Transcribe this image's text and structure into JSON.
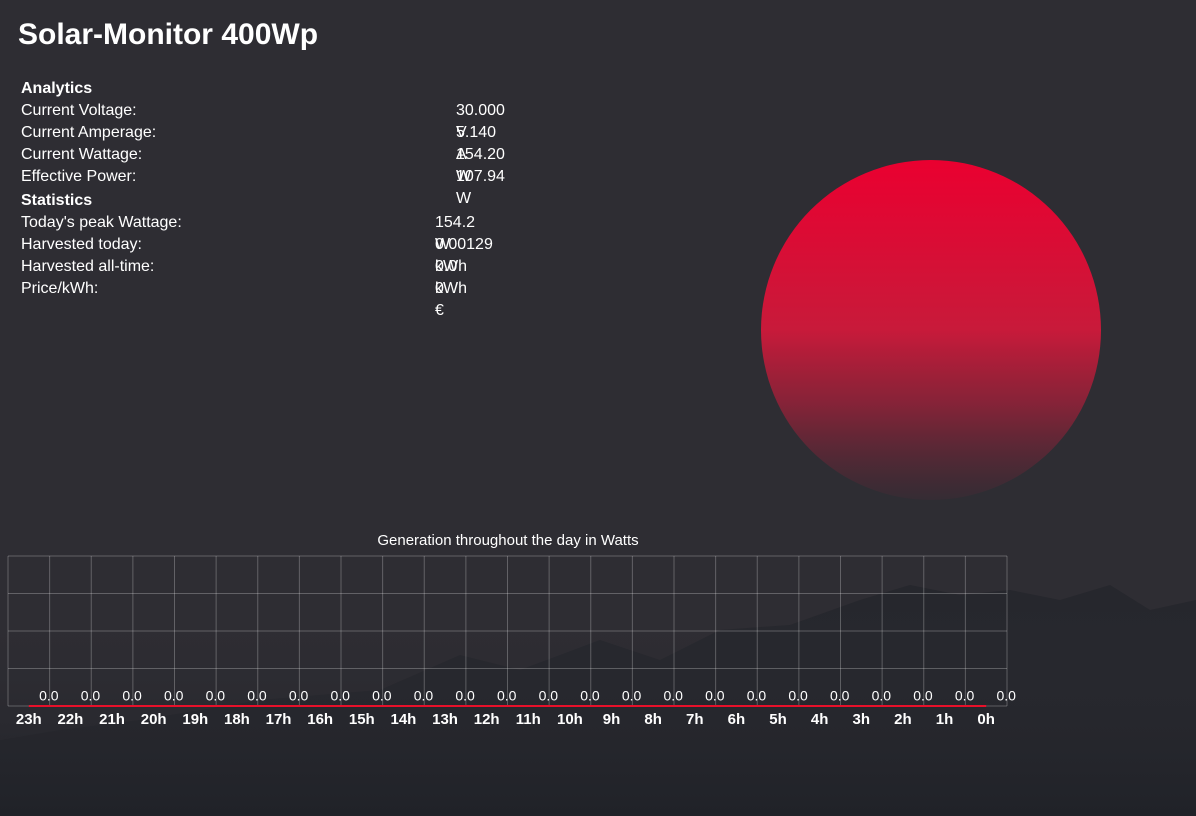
{
  "header": {
    "title": "Solar-Monitor 400Wp"
  },
  "analytics": {
    "heading": "Analytics",
    "rows": [
      [
        "Current Voltage:",
        "30.000 V"
      ],
      [
        "Current Amperage:",
        "5.140 A"
      ],
      [
        "Current Wattage:",
        "154.20 W"
      ],
      [
        "Effective Power:",
        "107.94 W"
      ]
    ]
  },
  "statistics": {
    "heading": "Statistics",
    "rows": [
      [
        "Today's peak Wattage:",
        "154.2 W"
      ],
      [
        "Harvested today:",
        "0.00129 kWh"
      ],
      [
        "Harvested all-time:",
        "0.0 kWh"
      ],
      [
        "Price/kWh:",
        "0 €"
      ]
    ]
  },
  "chart_data": {
    "type": "line",
    "title": "Generation throughout the day in Watts",
    "categories": [
      "23h",
      "22h",
      "21h",
      "20h",
      "19h",
      "18h",
      "17h",
      "16h",
      "15h",
      "14h",
      "13h",
      "12h",
      "11h",
      "10h",
      "9h",
      "8h",
      "7h",
      "6h",
      "5h",
      "4h",
      "3h",
      "2h",
      "1h",
      "0h"
    ],
    "values": [
      0,
      0,
      0,
      0,
      0,
      0,
      0,
      0,
      0,
      0,
      0,
      0,
      0,
      0,
      0,
      0,
      0,
      0,
      0,
      0,
      0,
      0,
      0,
      0
    ],
    "value_labels": [
      "0.0",
      "0.0",
      "0.0",
      "0.0",
      "0.0",
      "0.0",
      "0.0",
      "0.0",
      "0.0",
      "0.0",
      "0.0",
      "0.0",
      "0.0",
      "0.0",
      "0.0",
      "0.0",
      "0.0",
      "0.0",
      "0.0",
      "0.0",
      "0.0",
      "0.0",
      "0.0",
      "0.0"
    ],
    "color": "#e8102a",
    "ylim": [
      0,
      1
    ],
    "yticks": [
      0,
      0.25,
      0.5,
      0.75,
      1
    ],
    "grid": true
  }
}
